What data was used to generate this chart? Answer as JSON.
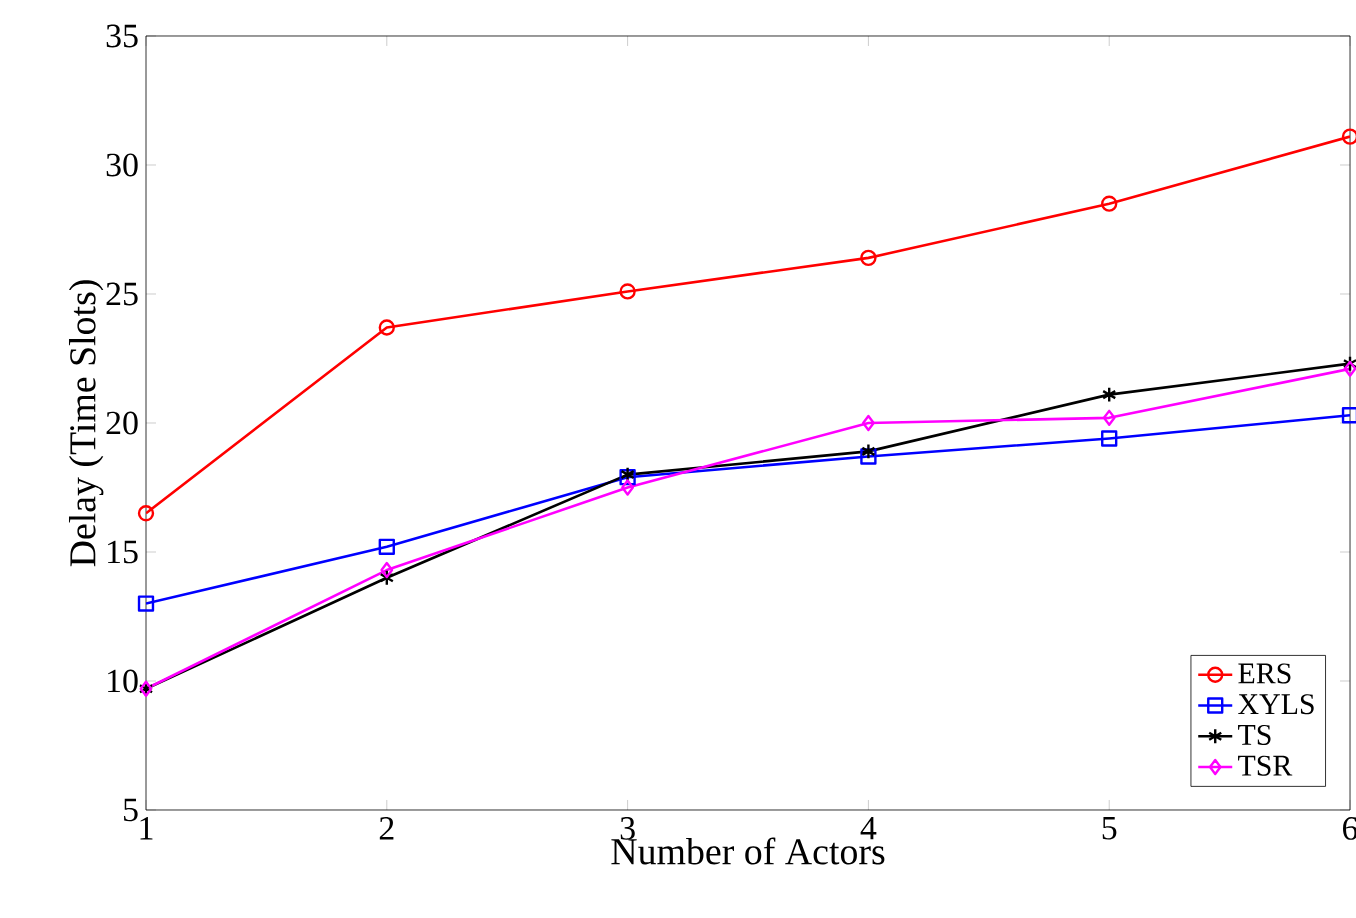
{
  "chart_data": {
    "type": "line",
    "xlabel": "Number of Actors",
    "ylabel": "Delay (Time Slots)",
    "x": [
      1,
      2,
      3,
      4,
      5,
      6
    ],
    "series": [
      {
        "name": "ERS",
        "color": "#ff0000",
        "marker": "circle",
        "values": [
          16.5,
          23.7,
          25.1,
          26.4,
          28.5,
          31.1
        ]
      },
      {
        "name": "XYLS",
        "color": "#0000ff",
        "marker": "square",
        "values": [
          13.0,
          15.2,
          17.9,
          18.7,
          19.4,
          20.3
        ]
      },
      {
        "name": "TS",
        "color": "#000000",
        "marker": "cross",
        "values": [
          9.7,
          14.0,
          18.0,
          18.9,
          21.1,
          22.3
        ]
      },
      {
        "name": "TSR",
        "color": "#ff00ff",
        "marker": "diamond",
        "values": [
          9.7,
          14.3,
          17.5,
          20.0,
          20.2,
          22.1
        ]
      }
    ],
    "xlim": [
      1,
      6
    ],
    "ylim": [
      5,
      35
    ],
    "xticks": [
      1,
      2,
      3,
      4,
      5,
      6
    ],
    "yticks": [
      5,
      10,
      15,
      20,
      25,
      30,
      35
    ],
    "grid": false,
    "legend": "bottom right",
    "line_style": "solid"
  }
}
